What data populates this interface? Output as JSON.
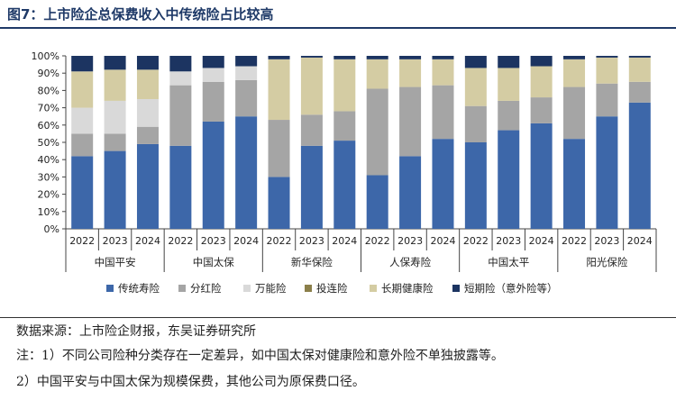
{
  "title": "图7：上市险企总保费收入中传统险占比较高",
  "notes": {
    "source": "数据来源：上市险企财报，东吴证券研究所",
    "note1": "注：1）不同公司险种分类存在一定差异，如中国太保对健康险和意外险不单独披露等。",
    "note2": "2）中国平安与中国太保为规模保费，其他公司为原保费口径。"
  },
  "chart_data": {
    "type": "bar",
    "stacked": true,
    "yaxis_labels": [
      "0%",
      "10%",
      "20%",
      "30%",
      "40%",
      "50%",
      "60%",
      "70%",
      "80%",
      "90%",
      "100%"
    ],
    "ylim": [
      0,
      100
    ],
    "grid": false,
    "legend_position": "bottom",
    "groups": [
      {
        "name": "中国平安",
        "years": [
          "2022",
          "2023",
          "2024"
        ]
      },
      {
        "name": "中国太保",
        "years": [
          "2022",
          "2023",
          "2024"
        ]
      },
      {
        "name": "新华保险",
        "years": [
          "2022",
          "2023",
          "2024"
        ]
      },
      {
        "name": "人保寿险",
        "years": [
          "2022",
          "2023",
          "2024"
        ]
      },
      {
        "name": "中国太平",
        "years": [
          "2022",
          "2023",
          "2024"
        ]
      },
      {
        "name": "阳光保险",
        "years": [
          "2022",
          "2023",
          "2024"
        ]
      }
    ],
    "series": [
      {
        "name": "传统寿险",
        "color": "#3d67a9",
        "values": [
          42,
          45,
          49,
          48,
          62,
          65,
          30,
          48,
          51,
          31,
          42,
          52,
          50,
          57,
          61,
          52,
          65,
          73
        ]
      },
      {
        "name": "分红险",
        "color": "#a5a5a5",
        "values": [
          13,
          10,
          10,
          35,
          23,
          21,
          33,
          18,
          17,
          50,
          40,
          31,
          21,
          17,
          15,
          30,
          19,
          12
        ]
      },
      {
        "name": "万能险",
        "color": "#d9d9d9",
        "values": [
          15,
          19,
          16,
          8,
          8,
          8,
          0,
          0,
          0,
          0,
          0,
          0,
          0,
          0,
          0,
          0,
          0,
          0
        ]
      },
      {
        "name": "投连险",
        "color": "#8b7f4a",
        "values": [
          0,
          0,
          0,
          0,
          0,
          0,
          0,
          0,
          0,
          0,
          0,
          0,
          0,
          0,
          0,
          0,
          0,
          0
        ]
      },
      {
        "name": "长期健康险",
        "color": "#d4cca3",
        "values": [
          21,
          18,
          17,
          0,
          0,
          0,
          35,
          33,
          30,
          17,
          16,
          15,
          22,
          19,
          18,
          16,
          15,
          14
        ]
      },
      {
        "name": "短期险（意外险等）",
        "color": "#1c3461",
        "values": [
          9,
          8,
          8,
          9,
          7,
          6,
          2,
          1,
          2,
          2,
          2,
          2,
          7,
          7,
          6,
          2,
          1,
          1
        ]
      }
    ]
  }
}
